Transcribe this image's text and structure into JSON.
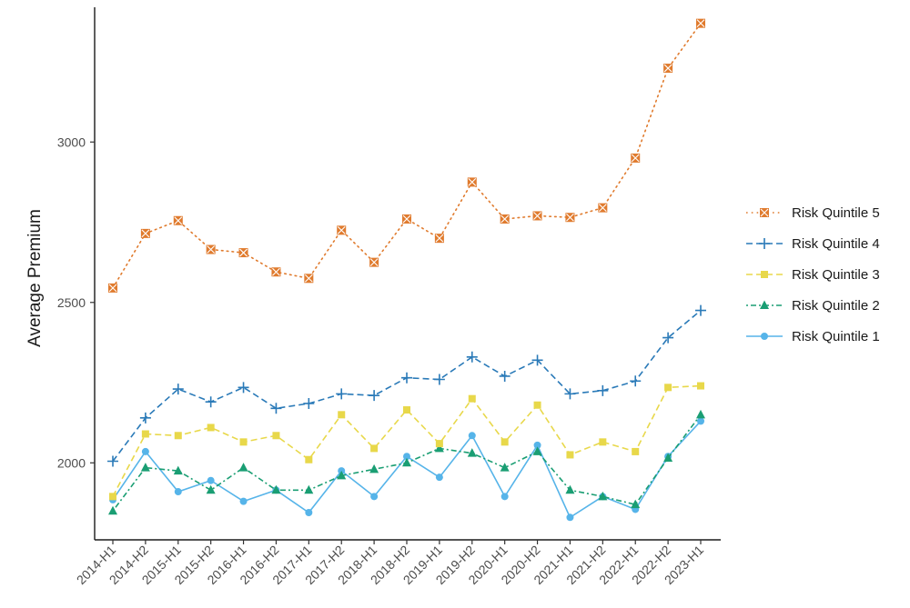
{
  "chart_data": {
    "type": "line",
    "title": "",
    "xlabel": "",
    "ylabel": "Average Premium",
    "ylim": [
      1760,
      3420
    ],
    "yticks": [
      2000,
      2500,
      3000
    ],
    "grid": false,
    "legend_position": "right",
    "categories": [
      "2014-H1",
      "2014-H2",
      "2015-H1",
      "2015-H2",
      "2016-H1",
      "2016-H2",
      "2017-H1",
      "2017-H2",
      "2018-H1",
      "2018-H2",
      "2019-H1",
      "2019-H2",
      "2020-H1",
      "2020-H2",
      "2021-H1",
      "2021-H2",
      "2022-H1",
      "2022-H2",
      "2023-H1"
    ],
    "series": [
      {
        "name": "Risk Quintile 5",
        "color": "#E07B2E",
        "marker": "square-cross",
        "dash": "dotted",
        "values": [
          2545,
          2715,
          2755,
          2665,
          2655,
          2595,
          2575,
          2725,
          2625,
          2760,
          2700,
          2875,
          2760,
          2770,
          2765,
          2795,
          2950,
          3230,
          3370
        ]
      },
      {
        "name": "Risk Quintile 4",
        "color": "#2A7AB8",
        "marker": "plus",
        "dash": "dashed",
        "values": [
          2005,
          2140,
          2230,
          2190,
          2235,
          2170,
          2185,
          2215,
          2210,
          2265,
          2260,
          2330,
          2270,
          2320,
          2215,
          2225,
          2255,
          2390,
          2475
        ]
      },
      {
        "name": "Risk Quintile 3",
        "color": "#E8D84A",
        "marker": "square",
        "dash": "dashed",
        "values": [
          1895,
          2090,
          2085,
          2110,
          2065,
          2085,
          2010,
          2150,
          2045,
          2165,
          2060,
          2200,
          2065,
          2180,
          2025,
          2065,
          2035,
          2235,
          2240
        ]
      },
      {
        "name": "Risk Quintile 2",
        "color": "#1A9E73",
        "marker": "triangle",
        "dash": "dotdash",
        "values": [
          1850,
          1985,
          1975,
          1915,
          1985,
          1915,
          1915,
          1960,
          1980,
          2000,
          2045,
          2030,
          1985,
          2035,
          1915,
          1895,
          1870,
          2015,
          2150
        ]
      },
      {
        "name": "Risk Quintile 1",
        "color": "#56B4E9",
        "marker": "circle",
        "dash": "solid",
        "values": [
          1885,
          2035,
          1910,
          1945,
          1880,
          1915,
          1845,
          1975,
          1895,
          2020,
          1955,
          2085,
          1895,
          2055,
          1830,
          1895,
          1855,
          2020,
          2130
        ]
      }
    ]
  }
}
